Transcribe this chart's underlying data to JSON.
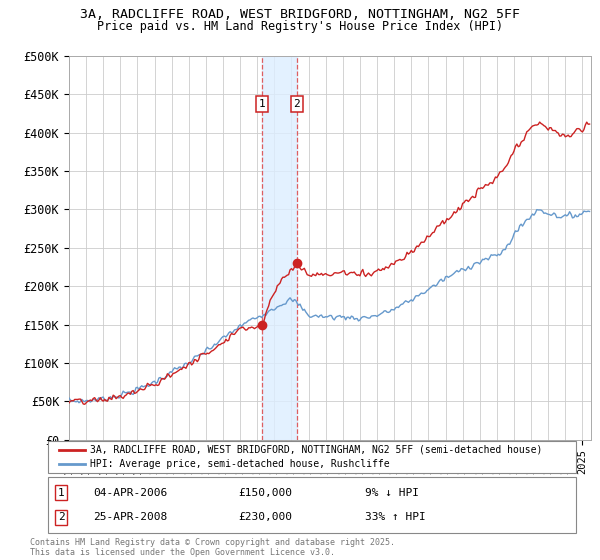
{
  "title_line1": "3A, RADCLIFFE ROAD, WEST BRIDGFORD, NOTTINGHAM, NG2 5FF",
  "title_line2": "Price paid vs. HM Land Registry's House Price Index (HPI)",
  "ylim": [
    0,
    500000
  ],
  "yticks": [
    0,
    50000,
    100000,
    150000,
    200000,
    250000,
    300000,
    350000,
    400000,
    450000,
    500000
  ],
  "ytick_labels": [
    "£0",
    "£50K",
    "£100K",
    "£150K",
    "£200K",
    "£250K",
    "£300K",
    "£350K",
    "£400K",
    "£450K",
    "£500K"
  ],
  "xlim_start": 1995.0,
  "xlim_end": 2025.5,
  "transaction1_date": 2006.27,
  "transaction1_price": 150000,
  "transaction1_label": "1",
  "transaction2_date": 2008.32,
  "transaction2_price": 230000,
  "transaction2_label": "2",
  "red_line_color": "#cc2222",
  "blue_line_color": "#6699cc",
  "blue_fill_color": "#c8ddf0",
  "vline_color": "#dd4444",
  "highlight_fill_color": "#ddeeff",
  "legend_label_red": "3A, RADCLIFFE ROAD, WEST BRIDGFORD, NOTTINGHAM, NG2 5FF (semi-detached house)",
  "legend_label_blue": "HPI: Average price, semi-detached house, Rushcliffe",
  "ann1_num": "1",
  "ann1_date": "04-APR-2006",
  "ann1_price": "£150,000",
  "ann1_hpi": "9% ↓ HPI",
  "ann2_num": "2",
  "ann2_date": "25-APR-2008",
  "ann2_price": "£230,000",
  "ann2_hpi": "33% ↑ HPI",
  "copyright_text": "Contains HM Land Registry data © Crown copyright and database right 2025.\nThis data is licensed under the Open Government Licence v3.0.",
  "background_color": "#ffffff",
  "grid_color": "#cccccc"
}
